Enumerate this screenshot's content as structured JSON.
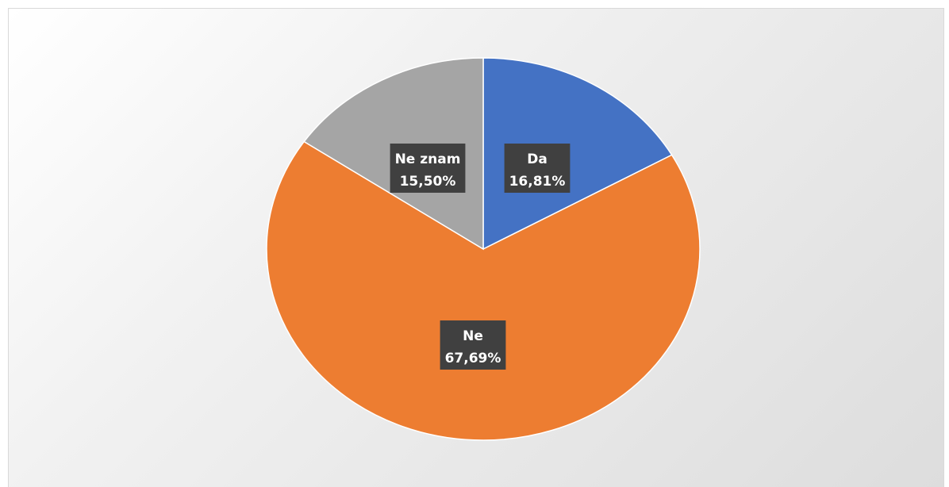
{
  "chart_data": {
    "type": "pie",
    "title": "",
    "slices": [
      {
        "label": "Da",
        "value": 16.81,
        "display": "16,81%",
        "color": "#4472C4"
      },
      {
        "label": "Ne",
        "value": 67.69,
        "display": "67,69%",
        "color": "#ED7D31"
      },
      {
        "label": "Ne znam",
        "value": 15.5,
        "display": "15,50%",
        "color": "#A5A5A5"
      }
    ],
    "start_angle": "12 o'clock",
    "direction": "clockwise",
    "legend": "none",
    "data_labels": "inside, dark box with category name and percent"
  }
}
